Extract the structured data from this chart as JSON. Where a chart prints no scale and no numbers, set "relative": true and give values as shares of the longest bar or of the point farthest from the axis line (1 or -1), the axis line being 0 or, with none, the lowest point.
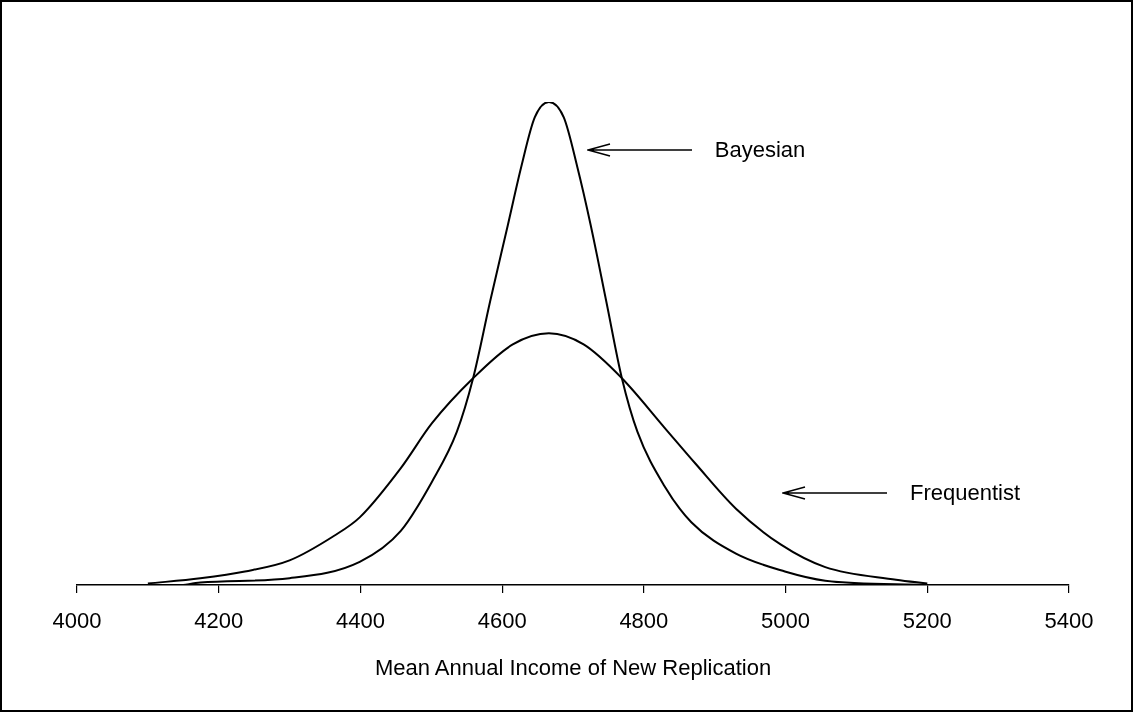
{
  "chart_data": {
    "type": "line",
    "relative": true,
    "xlabel": "Mean Annual Income of New Replication",
    "xlim": [
      4000,
      5400
    ],
    "xticks": [
      4000,
      4200,
      4400,
      4600,
      4800,
      5000,
      5200,
      5400
    ],
    "grid": false,
    "legend": "right",
    "marker": "none",
    "line_style": "solid",
    "series": [
      {
        "name": "Bayesian",
        "color": "#000000",
        "x": [
          4150,
          4174,
          4300,
          4399,
          4457,
          4501,
          4536,
          4559,
          4583,
          4608,
          4627,
          4646,
          4666,
          4687,
          4706,
          4725,
          4747,
          4769,
          4791,
          4829,
          4867,
          4930,
          4999,
          5056,
          5200
        ],
        "values": [
          0,
          0.005,
          0.014,
          0.048,
          0.112,
          0.214,
          0.317,
          0.428,
          0.587,
          0.745,
          0.866,
          0.968,
          1,
          0.968,
          0.866,
          0.745,
          0.587,
          0.428,
          0.317,
          0.205,
          0.13,
          0.065,
          0.028,
          0.009,
          0
        ]
      },
      {
        "name": "Frequentist",
        "color": "#000000",
        "x": [
          4100,
          4174,
          4237,
          4300,
          4363,
          4399,
          4457,
          4501,
          4559,
          4615,
          4666,
          4715,
          4769,
          4829,
          4873,
          4930,
          4993,
          5056,
          5156,
          5200
        ],
        "values": [
          0.003,
          0.014,
          0.028,
          0.051,
          0.102,
          0.14,
          0.242,
          0.335,
          0.428,
          0.498,
          0.521,
          0.498,
          0.428,
          0.326,
          0.251,
          0.158,
          0.084,
          0.037,
          0.011,
          0.003
        ]
      }
    ]
  }
}
